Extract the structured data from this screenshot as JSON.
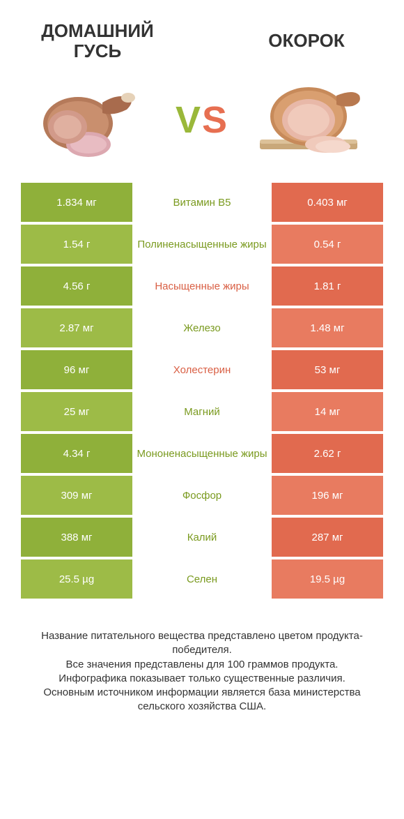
{
  "colors": {
    "green_dark": "#8fb03a",
    "green_light": "#9dbb47",
    "orange_dark": "#e16a4f",
    "orange_light": "#e87b60",
    "text_green": "#7a9a1f",
    "text_orange": "#d95f44",
    "text_dark": "#333333",
    "bg": "#ffffff"
  },
  "header": {
    "left_title": "ДОМАШНИЙ ГУСЬ",
    "right_title": "ОКОРОК",
    "vs_v": "V",
    "vs_s": "S"
  },
  "rows": [
    {
      "left": "1.834 мг",
      "mid": "Витамин B5",
      "right": "0.403 мг",
      "winner": "left"
    },
    {
      "left": "1.54 г",
      "mid": "Полиненасыщенные жиры",
      "right": "0.54 г",
      "winner": "left"
    },
    {
      "left": "4.56 г",
      "mid": "Насыщенные жиры",
      "right": "1.81 г",
      "winner": "right"
    },
    {
      "left": "2.87 мг",
      "mid": "Железо",
      "right": "1.48 мг",
      "winner": "left"
    },
    {
      "left": "96 мг",
      "mid": "Холестерин",
      "right": "53 мг",
      "winner": "right"
    },
    {
      "left": "25 мг",
      "mid": "Магний",
      "right": "14 мг",
      "winner": "left"
    },
    {
      "left": "4.34 г",
      "mid": "Мононенасыщенные жиры",
      "right": "2.62 г",
      "winner": "left"
    },
    {
      "left": "309 мг",
      "mid": "Фосфор",
      "right": "196 мг",
      "winner": "left"
    },
    {
      "left": "388 мг",
      "mid": "Калий",
      "right": "287 мг",
      "winner": "left"
    },
    {
      "left": "25.5 µg",
      "mid": "Селен",
      "right": "19.5 µg",
      "winner": "left"
    }
  ],
  "footer": {
    "l1": "Название питательного вещества представлено цветом продукта-победителя.",
    "l2": "Все значения представлены для 100 граммов продукта.",
    "l3": "Инфографика показывает только существенные различия.",
    "l4": "Основным источником информации является база министерства сельского хозяйства США."
  }
}
